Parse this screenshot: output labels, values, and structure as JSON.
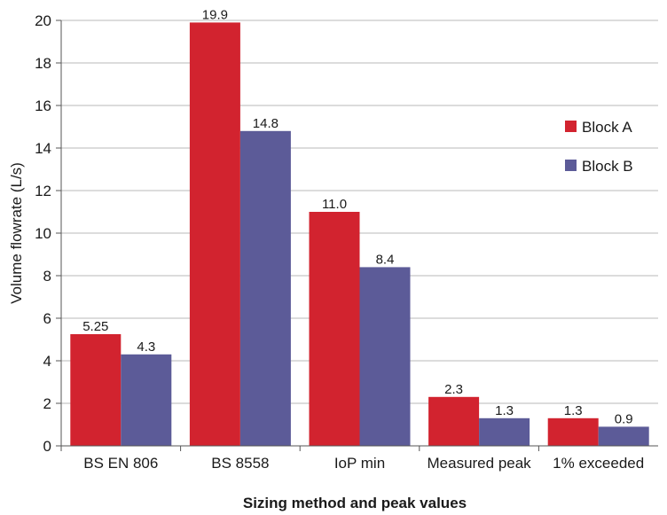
{
  "chart_data": {
    "type": "bar",
    "categories": [
      "BS EN 806",
      "BS 8558",
      "IoP min",
      "Measured peak",
      "1% exceeded"
    ],
    "series": [
      {
        "name": "Block A",
        "values": [
          5.25,
          19.9,
          11.0,
          2.3,
          1.3
        ],
        "labels": [
          "5.25",
          "19.9",
          "11.0",
          "2.3",
          "1.3"
        ],
        "color": "#d2232f"
      },
      {
        "name": "Block B",
        "values": [
          4.3,
          14.8,
          8.4,
          1.3,
          0.9
        ],
        "labels": [
          "4.3",
          "14.8",
          "8.4",
          "1.3",
          "0.9"
        ],
        "color": "#5c5b98"
      }
    ],
    "xlabel": "Sizing method and peak values",
    "ylabel": "Volume flowrate (L/s)",
    "ylim": [
      0,
      20
    ],
    "yticks": [
      0,
      2,
      4,
      6,
      8,
      10,
      12,
      14,
      16,
      18,
      20
    ],
    "grid": true,
    "legend_position": "right"
  }
}
